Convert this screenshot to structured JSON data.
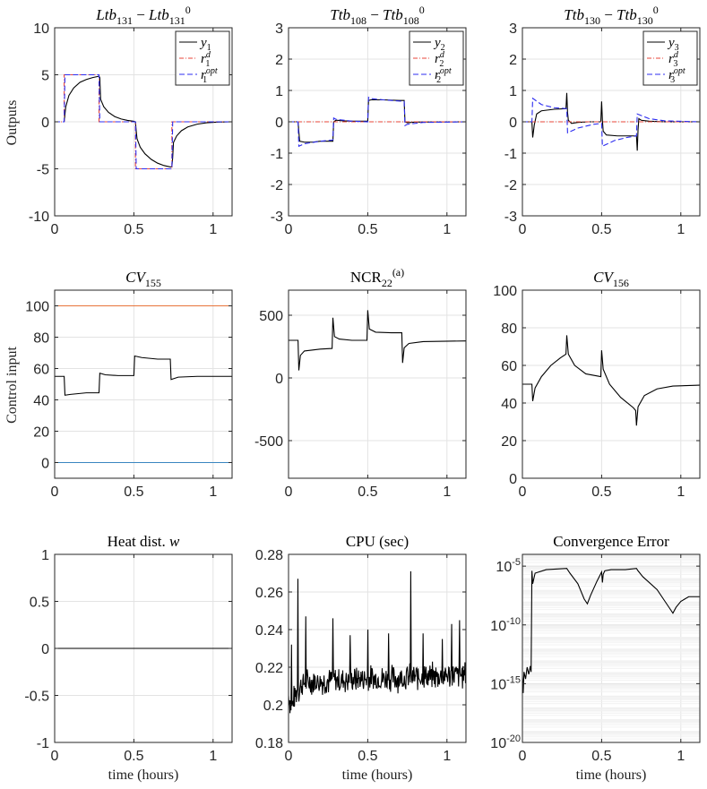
{
  "figure": {
    "ylabels": [
      "Outputs",
      "Control input"
    ],
    "xlabel": "time (hours)"
  },
  "chart_data": [
    {
      "id": "p11",
      "type": "line",
      "title": "Ltb131 − Ltb131⁰",
      "title_parts": [
        [
          "Ltb",
          "i"
        ],
        [
          "131",
          "sub"
        ],
        [
          " − ",
          "n"
        ],
        [
          "Ltb",
          "i"
        ],
        [
          "131",
          "sub"
        ],
        [
          "0",
          "sup"
        ]
      ],
      "xlim": [
        0,
        1.12
      ],
      "ylim": [
        -10,
        10
      ],
      "xticks": [
        0,
        0.5,
        1
      ],
      "xtick_labels": [
        "0",
        "0.5",
        "1"
      ],
      "yticks": [
        -10,
        -5,
        0,
        5,
        10
      ],
      "ytick_labels": [
        "-10",
        "-5",
        "0",
        "5",
        "10"
      ],
      "legend": [
        "y1",
        "r1d",
        "r1opt"
      ],
      "series": [
        {
          "name": "y1",
          "color": "#000000",
          "dash": "",
          "x": [
            0.06,
            0.07,
            0.09,
            0.12,
            0.16,
            0.2,
            0.24,
            0.28,
            0.285,
            0.29,
            0.31,
            0.34,
            0.38,
            0.42,
            0.46,
            0.5,
            0.51,
            0.515,
            0.52,
            0.54,
            0.57,
            0.61,
            0.65,
            0.69,
            0.73,
            0.74,
            0.745,
            0.75,
            0.77,
            0.8,
            0.84,
            0.9,
            0.96,
            1.03,
            1.12
          ],
          "y": [
            0,
            1.6,
            2.8,
            3.6,
            4.2,
            4.5,
            4.7,
            4.85,
            4.7,
            2.4,
            1.6,
            1.0,
            0.55,
            0.3,
            0.15,
            0.05,
            0.0,
            -1.0,
            -1.8,
            -2.7,
            -3.4,
            -4.0,
            -4.4,
            -4.65,
            -4.8,
            -4.8,
            -3.8,
            -2.2,
            -1.5,
            -0.95,
            -0.55,
            -0.25,
            -0.1,
            -0.03,
            0
          ]
        },
        {
          "name": "r1d",
          "color": "#e8463a",
          "dash": "5,2,1,2",
          "x": [
            0,
            0.06,
            0.06,
            0.28,
            0.28,
            0.51,
            0.51,
            0.74,
            0.74,
            1.12
          ],
          "y": [
            0,
            0,
            5,
            5,
            0,
            0,
            -5,
            -5,
            0,
            0
          ]
        },
        {
          "name": "r1opt",
          "color": "#2c2cf0",
          "dash": "6,3",
          "x": [
            0,
            0.06,
            0.065,
            0.28,
            0.285,
            0.51,
            0.515,
            0.74,
            0.745,
            1.12
          ],
          "y": [
            0,
            0,
            5,
            5,
            0,
            0,
            -5,
            -5,
            0,
            0
          ]
        }
      ]
    },
    {
      "id": "p12",
      "type": "line",
      "title": "Ttb108 − Ttb108⁰",
      "title_parts": [
        [
          "Ttb",
          "i"
        ],
        [
          "108",
          "sub"
        ],
        [
          " − ",
          "n"
        ],
        [
          "Ttb",
          "i"
        ],
        [
          "108",
          "sub"
        ],
        [
          "0",
          "sup"
        ]
      ],
      "xlim": [
        0,
        1.12
      ],
      "ylim": [
        -3,
        3
      ],
      "xticks": [
        0,
        0.5,
        1
      ],
      "xtick_labels": [
        "0",
        "0.5",
        "1"
      ],
      "yticks": [
        -3,
        -2,
        -1,
        0,
        1,
        2,
        3
      ],
      "ytick_labels": [
        "-3",
        "-2",
        "-1",
        "0",
        "1",
        "2",
        "3"
      ],
      "legend": [
        "y2",
        "r2d",
        "r2opt"
      ],
      "series": [
        {
          "name": "y2",
          "color": "#000000",
          "dash": "",
          "x": [
            0,
            0.06,
            0.07,
            0.1,
            0.15,
            0.2,
            0.28,
            0.285,
            0.3,
            0.35,
            0.4,
            0.5,
            0.505,
            0.52,
            0.6,
            0.7,
            0.73,
            0.735,
            0.75,
            0.8,
            1.12
          ],
          "y": [
            0,
            0,
            -0.62,
            -0.65,
            -0.65,
            -0.62,
            -0.62,
            0.0,
            0.05,
            0.03,
            0.02,
            0.02,
            0.68,
            0.7,
            0.7,
            0.68,
            0.68,
            0.0,
            -0.03,
            -0.01,
            0
          ]
        },
        {
          "name": "r2d",
          "color": "#e8463a",
          "dash": "5,2,1,2",
          "x": [
            0,
            1.12
          ],
          "y": [
            0,
            0
          ]
        },
        {
          "name": "r2opt",
          "color": "#2c2cf0",
          "dash": "6,3",
          "x": [
            0,
            0.06,
            0.065,
            0.1,
            0.2,
            0.28,
            0.285,
            0.3,
            0.4,
            0.5,
            0.505,
            0.52,
            0.6,
            0.73,
            0.735,
            0.75,
            0.85,
            1.12
          ],
          "y": [
            0,
            0,
            -0.78,
            -0.7,
            -0.62,
            -0.58,
            0.12,
            0.08,
            0.02,
            0.0,
            0.78,
            0.74,
            0.7,
            0.65,
            -0.12,
            -0.08,
            -0.02,
            0
          ]
        }
      ]
    },
    {
      "id": "p13",
      "type": "line",
      "title": "Ttb130 − Ttb130⁰",
      "title_parts": [
        [
          "Ttb",
          "i"
        ],
        [
          "130",
          "sub"
        ],
        [
          " − ",
          "n"
        ],
        [
          "Ttb",
          "i"
        ],
        [
          "130",
          "sub"
        ],
        [
          "0",
          "sup"
        ]
      ],
      "xlim": [
        0,
        1.12
      ],
      "ylim": [
        -3,
        3
      ],
      "xticks": [
        0,
        0.5,
        1
      ],
      "xtick_labels": [
        "0",
        "0.5",
        "1"
      ],
      "yticks": [
        -3,
        -2,
        -1,
        0,
        1,
        2,
        3
      ],
      "ytick_labels": [
        "-3",
        "-2",
        "-1",
        "0",
        "1",
        "2",
        "3"
      ],
      "legend": [
        "y3",
        "r3d",
        "r3opt"
      ],
      "series": [
        {
          "name": "y3",
          "color": "#000000",
          "dash": "",
          "x": [
            0,
            0.06,
            0.065,
            0.075,
            0.09,
            0.12,
            0.2,
            0.275,
            0.28,
            0.285,
            0.29,
            0.31,
            0.35,
            0.42,
            0.495,
            0.5,
            0.505,
            0.51,
            0.53,
            0.6,
            0.72,
            0.725,
            0.73,
            0.735,
            0.75,
            0.8,
            0.9,
            1.12
          ],
          "y": [
            0,
            0,
            -0.5,
            -0.1,
            0.25,
            0.35,
            0.4,
            0.42,
            0.92,
            0.3,
            0.05,
            -0.05,
            -0.02,
            0.0,
            0.0,
            0.65,
            0.05,
            -0.3,
            -0.42,
            -0.45,
            -0.45,
            -0.92,
            -0.25,
            0.1,
            0.05,
            0.02,
            0.0,
            0
          ]
        },
        {
          "name": "r3d",
          "color": "#e8463a",
          "dash": "5,2,1,2",
          "x": [
            0,
            1.12
          ],
          "y": [
            0,
            0
          ]
        },
        {
          "name": "r3opt",
          "color": "#2c2cf0",
          "dash": "6,3",
          "x": [
            0,
            0.06,
            0.065,
            0.12,
            0.2,
            0.28,
            0.285,
            0.35,
            0.45,
            0.5,
            0.505,
            0.58,
            0.66,
            0.72,
            0.725,
            0.8,
            0.9,
            1.12
          ],
          "y": [
            0,
            0,
            0.75,
            0.55,
            0.45,
            0.42,
            -0.35,
            -0.2,
            -0.08,
            -0.05,
            -0.78,
            -0.6,
            -0.5,
            -0.45,
            0.25,
            0.1,
            0.03,
            0
          ]
        }
      ]
    },
    {
      "id": "p21",
      "type": "line",
      "title": "CV155",
      "title_parts": [
        [
          "CV",
          "i"
        ],
        [
          "155",
          "sub"
        ]
      ],
      "xlim": [
        0,
        1.12
      ],
      "ylim": [
        -10,
        110
      ],
      "xticks": [
        0,
        0.5,
        1
      ],
      "xtick_labels": [
        "0",
        "0.5",
        "1"
      ],
      "yticks": [
        0,
        20,
        40,
        60,
        80,
        100
      ],
      "ytick_labels": [
        "0",
        "20",
        "40",
        "60",
        "80",
        "100"
      ],
      "series": [
        {
          "name": "upper",
          "color": "#e8743a",
          "dash": "",
          "x": [
            0,
            1.12
          ],
          "y": [
            100,
            100
          ]
        },
        {
          "name": "lower",
          "color": "#3a86c0",
          "dash": "",
          "x": [
            0,
            1.12
          ],
          "y": [
            0,
            0
          ]
        },
        {
          "name": "cv155",
          "color": "#000000",
          "dash": "",
          "x": [
            0,
            0.06,
            0.065,
            0.1,
            0.2,
            0.28,
            0.285,
            0.32,
            0.4,
            0.5,
            0.505,
            0.55,
            0.65,
            0.73,
            0.735,
            0.78,
            0.9,
            1.12
          ],
          "y": [
            55,
            55,
            43,
            43.5,
            44.5,
            44.5,
            57,
            56,
            55.5,
            55.5,
            68,
            67,
            66,
            66,
            53,
            54.5,
            55,
            55
          ]
        }
      ]
    },
    {
      "id": "p22",
      "type": "line",
      "title": "NCR22^(a)",
      "title_parts": [
        [
          "NCR",
          "n"
        ],
        [
          "22",
          "sub"
        ],
        [
          "(a)",
          "sup"
        ]
      ],
      "xlim": [
        0,
        1.12
      ],
      "ylim": [
        -800,
        700
      ],
      "xticks": [
        0,
        0.5,
        1
      ],
      "xtick_labels": [
        "0",
        "0.5",
        "1"
      ],
      "yticks": [
        -500,
        0,
        500
      ],
      "ytick_labels": [
        "-500",
        "0",
        "500"
      ],
      "series": [
        {
          "name": "ncr22",
          "color": "#000000",
          "dash": "",
          "x": [
            0,
            0.06,
            0.065,
            0.075,
            0.1,
            0.2,
            0.275,
            0.28,
            0.29,
            0.32,
            0.4,
            0.495,
            0.5,
            0.51,
            0.55,
            0.65,
            0.715,
            0.72,
            0.73,
            0.76,
            0.85,
            1.12
          ],
          "y": [
            300,
            300,
            60,
            180,
            215,
            230,
            235,
            480,
            330,
            310,
            300,
            300,
            540,
            390,
            365,
            360,
            360,
            120,
            240,
            275,
            290,
            295
          ]
        }
      ]
    },
    {
      "id": "p23",
      "type": "line",
      "title": "CV156",
      "title_parts": [
        [
          "CV",
          "i"
        ],
        [
          "156",
          "sub"
        ]
      ],
      "xlim": [
        0,
        1.12
      ],
      "ylim": [
        0,
        100
      ],
      "xticks": [
        0,
        0.5,
        1
      ],
      "xtick_labels": [
        "0",
        "0.5",
        "1"
      ],
      "yticks": [
        0,
        20,
        40,
        60,
        80,
        100
      ],
      "ytick_labels": [
        "0",
        "20",
        "40",
        "60",
        "80",
        "100"
      ],
      "series": [
        {
          "name": "upper",
          "color": "#e8743a",
          "dash": "",
          "x": [
            0,
            1.12
          ],
          "y": [
            100,
            100
          ]
        },
        {
          "name": "lower",
          "color": "#3a86c0",
          "dash": "",
          "x": [
            0,
            1.12
          ],
          "y": [
            0,
            0
          ]
        },
        {
          "name": "cv156",
          "color": "#000000",
          "dash": "",
          "x": [
            0,
            0.06,
            0.065,
            0.08,
            0.12,
            0.18,
            0.24,
            0.275,
            0.28,
            0.29,
            0.33,
            0.4,
            0.495,
            0.5,
            0.51,
            0.55,
            0.62,
            0.7,
            0.715,
            0.72,
            0.73,
            0.77,
            0.85,
            0.95,
            1.12
          ],
          "y": [
            50,
            50,
            41,
            48,
            54,
            60,
            64,
            66,
            76,
            66,
            60,
            55.5,
            54,
            68,
            58,
            50,
            43,
            37.5,
            36,
            28,
            38,
            44,
            47.5,
            49,
            49.5
          ]
        }
      ]
    },
    {
      "id": "p31",
      "type": "line",
      "title": "Heat dist. w",
      "title_parts": [
        [
          "Heat dist. ",
          "n"
        ],
        [
          "w",
          "i"
        ]
      ],
      "xlim": [
        0,
        1.12
      ],
      "ylim": [
        -1,
        1
      ],
      "xticks": [
        0,
        0.5,
        1
      ],
      "xtick_labels": [
        "0",
        "0.5",
        "1"
      ],
      "yticks": [
        -1,
        -0.5,
        0,
        0.5,
        1
      ],
      "ytick_labels": [
        "-1",
        "-0.5",
        "0",
        "0.5",
        "1"
      ],
      "series": [
        {
          "name": "w",
          "color": "#000000",
          "dash": "",
          "x": [
            0,
            1.12
          ],
          "y": [
            0,
            0
          ]
        }
      ]
    },
    {
      "id": "p32",
      "type": "line",
      "title": "CPU (sec)",
      "title_parts": [
        [
          "CPU (sec)",
          "n"
        ]
      ],
      "xlim": [
        0,
        1.12
      ],
      "ylim": [
        0.18,
        0.28
      ],
      "xticks": [
        0,
        0.5,
        1
      ],
      "xtick_labels": [
        "0",
        "0.5",
        "1"
      ],
      "yticks": [
        0.18,
        0.2,
        0.22,
        0.24,
        0.26,
        0.28
      ],
      "ytick_labels": [
        "0.18",
        "0.2",
        "0.22",
        "0.24",
        "0.26",
        "0.28"
      ],
      "series": [
        {
          "name": "cpu",
          "color": "#000000",
          "dash": "",
          "noise": true,
          "seed": 7,
          "n": 360,
          "noise_amp": 0.007,
          "x": [
            0,
            0.02,
            0.05,
            0.1,
            0.3,
            0.6,
            0.9,
            1.12
          ],
          "y": [
            0.205,
            0.199,
            0.207,
            0.212,
            0.213,
            0.214,
            0.215,
            0.216
          ],
          "spikes_x": [
            0.02,
            0.06,
            0.11,
            0.28,
            0.39,
            0.5,
            0.63,
            0.77,
            0.85,
            0.97,
            1.03,
            1.08
          ],
          "spikes_y": [
            0.232,
            0.267,
            0.247,
            0.246,
            0.237,
            0.24,
            0.238,
            0.271,
            0.238,
            0.235,
            0.243,
            0.245
          ]
        }
      ]
    },
    {
      "id": "p33",
      "type": "line",
      "yscale": "log",
      "title": "Convergence Error",
      "title_parts": [
        [
          "Convergence Error",
          "n"
        ]
      ],
      "xlim": [
        0,
        1.12
      ],
      "ylim_log10": [
        -20,
        -4
      ],
      "xticks": [
        0,
        0.5,
        1
      ],
      "xtick_labels": [
        "0",
        "0.5",
        "1"
      ],
      "yticks_log10": [
        -20,
        -15,
        -10,
        -5
      ],
      "ytick_labels": [
        "10",
        "10",
        "10",
        "10"
      ],
      "ytick_exponents": [
        "-20",
        "-15",
        "-10",
        "-5"
      ],
      "series": [
        {
          "name": "error",
          "color": "#000000",
          "dash": "",
          "x": [
            0,
            0.005,
            0.01,
            0.02,
            0.03,
            0.04,
            0.05,
            0.055,
            0.06,
            0.065,
            0.08,
            0.15,
            0.28,
            0.3,
            0.35,
            0.39,
            0.41,
            0.43,
            0.47,
            0.5,
            0.505,
            0.51,
            0.52,
            0.56,
            0.65,
            0.72,
            0.73,
            0.76,
            0.85,
            0.93,
            0.95,
            0.97,
            1.0,
            1.05,
            1.12
          ],
          "log_y": [
            -14.3,
            -15.8,
            -14.0,
            -14.6,
            -13.6,
            -14.2,
            -13.5,
            -14.0,
            -5.4,
            -6.5,
            -5.6,
            -5.3,
            -5.2,
            -5.6,
            -6.5,
            -7.8,
            -8.2,
            -7.5,
            -6.3,
            -5.5,
            -6.4,
            -5.7,
            -5.4,
            -5.3,
            -5.3,
            -5.2,
            -5.4,
            -5.9,
            -7.0,
            -8.6,
            -9.0,
            -8.5,
            -8.0,
            -7.6,
            -7.6
          ]
        }
      ]
    }
  ]
}
